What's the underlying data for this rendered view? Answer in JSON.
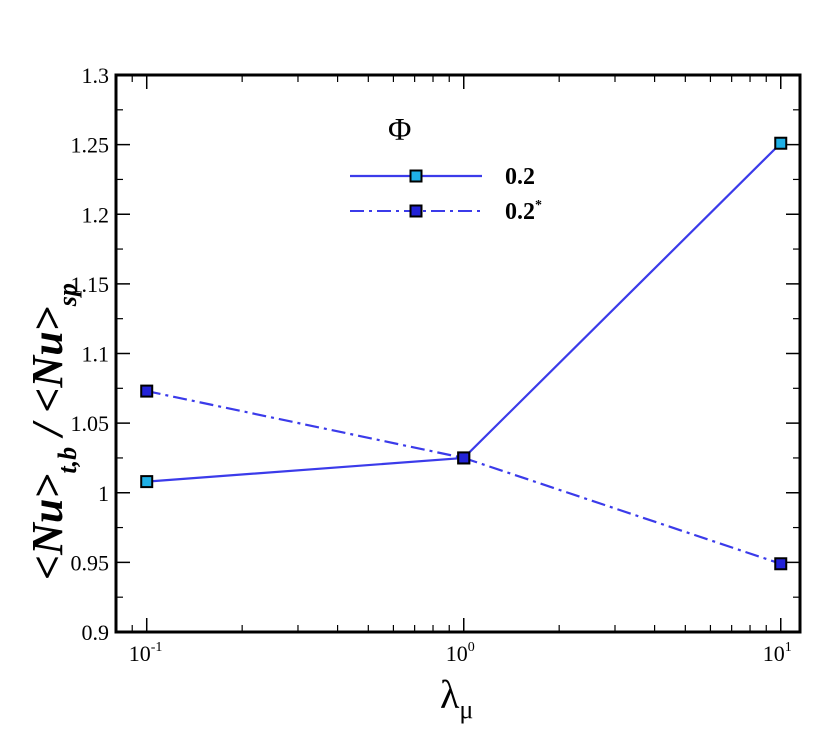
{
  "chart_data": {
    "type": "line",
    "xscale": "log",
    "xlim": [
      0.08,
      11.5
    ],
    "ylim": [
      0.9,
      1.3
    ],
    "x": [
      0.1,
      1,
      10
    ],
    "x_ticks": [
      {
        "value": 0.1,
        "base": "10",
        "exp": "-1"
      },
      {
        "value": 1,
        "base": "10",
        "exp": "0"
      },
      {
        "value": 10,
        "base": "10",
        "exp": "1"
      }
    ],
    "y_ticks": [
      "0.9",
      "0.95",
      "1",
      "1.05",
      "1.1",
      "1.15",
      "1.2",
      "1.25",
      "1.3"
    ],
    "xlabel": {
      "main": "λ",
      "sub": "μ"
    },
    "ylabel": {
      "part1": "<Nu>",
      "sub1": "t,b",
      "slash": " / ",
      "part2": "<Nu>",
      "sub2": "sp"
    },
    "legend": {
      "title": "Φ",
      "placement": "top-center"
    },
    "series": [
      {
        "name": "0.2",
        "sup": "",
        "values": [
          1.008,
          1.025,
          1.251
        ],
        "line_style": "solid",
        "color": "#3b3bea",
        "marker_fill": "#1fb0e6"
      },
      {
        "name": "0.2",
        "sup": "*",
        "values": [
          1.073,
          1.025,
          0.949
        ],
        "line_style": "dashdot",
        "color": "#3b3bea",
        "marker_fill": "#2323d8"
      }
    ],
    "grid": false
  }
}
